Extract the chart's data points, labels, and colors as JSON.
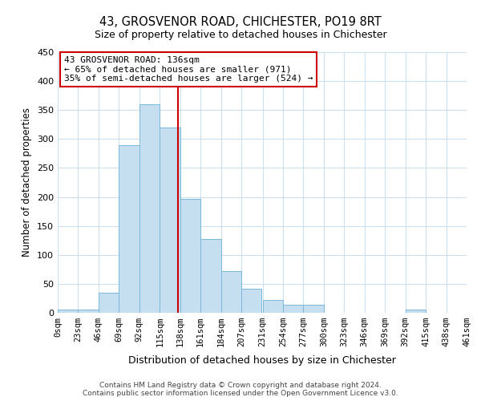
{
  "title": "43, GROSVENOR ROAD, CHICHESTER, PO19 8RT",
  "subtitle": "Size of property relative to detached houses in Chichester",
  "xlabel": "Distribution of detached houses by size in Chichester",
  "ylabel": "Number of detached properties",
  "bin_edges": [
    0,
    23,
    46,
    69,
    92,
    115,
    138,
    161,
    184,
    207,
    231,
    254,
    277,
    300,
    323,
    346,
    369,
    392,
    415,
    438,
    461
  ],
  "bin_counts": [
    5,
    5,
    35,
    290,
    360,
    320,
    197,
    128,
    72,
    42,
    22,
    14,
    14,
    0,
    0,
    0,
    0,
    5,
    0,
    0
  ],
  "bar_color": "#c5dff0",
  "bar_edge_color": "#7bb8d9",
  "property_value": 136,
  "vline_color": "#cc0000",
  "ylim": [
    0,
    450
  ],
  "yticks": [
    0,
    50,
    100,
    150,
    200,
    250,
    300,
    350,
    400,
    450
  ],
  "tick_labels": [
    "0sqm",
    "23sqm",
    "46sqm",
    "69sqm",
    "92sqm",
    "115sqm",
    "138sqm",
    "161sqm",
    "184sqm",
    "207sqm",
    "231sqm",
    "254sqm",
    "277sqm",
    "300sqm",
    "323sqm",
    "346sqm",
    "369sqm",
    "392sqm",
    "415sqm",
    "438sqm",
    "461sqm"
  ],
  "annotation_title": "43 GROSVENOR ROAD: 136sqm",
  "annotation_line1": "← 65% of detached houses are smaller (971)",
  "annotation_line2": "35% of semi-detached houses are larger (524) →",
  "annotation_box_color": "#ffffff",
  "annotation_box_edge": "#cc0000",
  "footer_line1": "Contains HM Land Registry data © Crown copyright and database right 2024.",
  "footer_line2": "Contains public sector information licensed under the Open Government Licence v3.0.",
  "bg_color": "#ffffff",
  "grid_color": "#cce0f0"
}
